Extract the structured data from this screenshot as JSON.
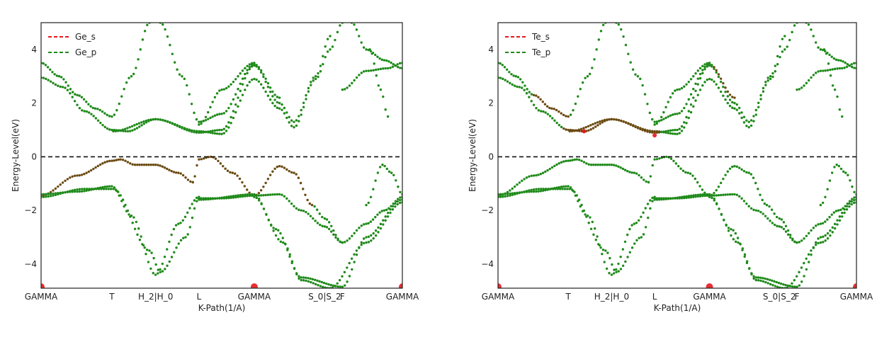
{
  "colors": {
    "s_orbital": "#e8161b",
    "p_orbital": "#1f8a1a",
    "mixed": "#6b4a10",
    "fermi_line": "#111111",
    "axes": "#222222"
  },
  "chart_data": [
    {
      "type": "scatter",
      "xlabel": "K-Path(1/A)",
      "ylabel": "Energy-Level(eV)",
      "xlim": [
        0,
        1
      ],
      "ylim": [
        -4.9,
        5.0
      ],
      "yticks": [
        {
          "value": 4,
          "label": "4"
        },
        {
          "value": 2,
          "label": "2"
        },
        {
          "value": 0,
          "label": "0"
        },
        {
          "value": -2,
          "label": "−2"
        },
        {
          "value": -4,
          "label": "−4"
        }
      ],
      "kpoints": [
        {
          "pos": 0.0,
          "label": "GAMMA"
        },
        {
          "pos": 0.196,
          "label": "T"
        },
        {
          "pos": 0.317,
          "label": "H_2|H_0"
        },
        {
          "pos": 0.437,
          "label": "L"
        },
        {
          "pos": 0.59,
          "label": "GAMMA"
        },
        {
          "pos": 0.785,
          "label": "S_0|S_2"
        },
        {
          "pos": 0.834,
          "label": "F"
        },
        {
          "pos": 1.0,
          "label": "GAMMA"
        }
      ],
      "fermi_level": 0,
      "legend": {
        "placement": "top-left",
        "entries": [
          {
            "label": "Ge_s",
            "color": "#e8161b"
          },
          {
            "label": "Ge_p",
            "color": "#1f8a1a"
          }
        ]
      },
      "bands": [
        [
          [
            0,
            3.5
          ],
          [
            0.05,
            3.0
          ],
          [
            0.1,
            2.3
          ],
          [
            0.15,
            1.8
          ],
          [
            0.196,
            1.5
          ],
          [
            0.25,
            3.0
          ],
          [
            0.3,
            5.0
          ]
        ],
        [
          [
            0,
            2.95
          ],
          [
            0.06,
            2.6
          ],
          [
            0.12,
            1.7
          ],
          [
            0.196,
            1.0
          ],
          [
            0.24,
            0.95
          ],
          [
            0.317,
            1.4
          ],
          [
            0.437,
            0.95
          ],
          [
            0.5,
            0.85
          ],
          [
            0.59,
            2.9
          ],
          [
            0.66,
            1.8
          ],
          [
            0.7,
            1.1
          ],
          [
            0.76,
            2.9
          ],
          [
            0.8,
            4.0
          ],
          [
            0.834,
            5.0
          ]
        ],
        [
          [
            0.2,
            0.95
          ],
          [
            0.317,
            1.4
          ],
          [
            0.437,
            0.9
          ],
          [
            0.5,
            1.0
          ],
          [
            0.59,
            3.4
          ],
          [
            0.66,
            2.0
          ],
          [
            0.7,
            1.3
          ],
          [
            0.76,
            3.0
          ],
          [
            0.8,
            4.5
          ]
        ],
        [
          [
            0.33,
            5.0
          ],
          [
            0.39,
            3.0
          ],
          [
            0.437,
            1.3
          ],
          [
            0.5,
            1.6
          ],
          [
            0.59,
            3.45
          ],
          [
            0.66,
            2.2
          ]
        ],
        [
          [
            0.437,
            1.2
          ],
          [
            0.5,
            2.5
          ],
          [
            0.59,
            3.5
          ]
        ],
        [
          [
            0.0,
            -1.45
          ],
          [
            0.1,
            -0.7
          ],
          [
            0.196,
            -0.15
          ],
          [
            0.22,
            -0.1
          ],
          [
            0.26,
            -0.3
          ],
          [
            0.317,
            -0.3
          ],
          [
            0.38,
            -0.6
          ],
          [
            0.42,
            -0.95
          ]
        ],
        [
          [
            0.42,
            -0.95
          ],
          [
            0.437,
            -0.1
          ],
          [
            0.47,
            0.0
          ],
          [
            0.53,
            -0.6
          ],
          [
            0.59,
            -1.45
          ],
          [
            0.66,
            -0.35
          ],
          [
            0.7,
            -0.6
          ],
          [
            0.75,
            -1.8
          ],
          [
            0.785,
            -2.3
          ],
          [
            0.834,
            -3.2
          ]
        ],
        [
          [
            0.0,
            -1.4
          ],
          [
            0.1,
            -1.3
          ],
          [
            0.196,
            -1.1
          ],
          [
            0.25,
            -2.2
          ],
          [
            0.317,
            -4.4
          ],
          [
            0.38,
            -2.5
          ],
          [
            0.437,
            -1.5
          ]
        ],
        [
          [
            0.0,
            -1.5
          ],
          [
            0.12,
            -1.2
          ],
          [
            0.2,
            -1.2
          ],
          [
            0.3,
            -3.5
          ],
          [
            0.33,
            -4.3
          ],
          [
            0.4,
            -3.0
          ],
          [
            0.437,
            -1.55
          ],
          [
            0.5,
            -1.55
          ],
          [
            0.59,
            -1.45
          ],
          [
            0.66,
            -1.4
          ],
          [
            0.72,
            -2.0
          ],
          [
            0.785,
            -2.6
          ],
          [
            0.834,
            -3.2
          ],
          [
            0.9,
            -2.5
          ],
          [
            0.95,
            -2.0
          ],
          [
            1.0,
            -1.5
          ]
        ],
        [
          [
            0.437,
            -1.6
          ],
          [
            0.59,
            -1.4
          ],
          [
            0.65,
            -2.7
          ],
          [
            0.72,
            -4.5
          ],
          [
            0.834,
            -4.85
          ],
          [
            0.9,
            -3.0
          ],
          [
            1.0,
            -1.6
          ]
        ],
        [
          [
            0.59,
            -1.5
          ],
          [
            0.67,
            -3.2
          ],
          [
            0.72,
            -4.6
          ],
          [
            0.8,
            -4.9
          ],
          [
            0.9,
            -3.2
          ],
          [
            1.0,
            -1.7
          ]
        ],
        [
          [
            0.834,
            2.5
          ],
          [
            0.9,
            3.2
          ],
          [
            0.96,
            3.3
          ],
          [
            1.0,
            3.5
          ]
        ],
        [
          [
            0.86,
            5.0
          ],
          [
            0.9,
            4.0
          ],
          [
            0.95,
            3.6
          ],
          [
            1.0,
            3.3
          ]
        ],
        [
          [
            0.9,
            -1.8
          ],
          [
            0.945,
            -0.3
          ],
          [
            0.97,
            -0.6
          ],
          [
            1.0,
            -1.4
          ]
        ],
        [
          [
            0.91,
            4.0
          ],
          [
            0.94,
            2.5
          ],
          [
            0.96,
            1.5
          ]
        ]
      ],
      "s_weight": [
        {
          "x": 0.0,
          "y": -4.85,
          "r": 5
        },
        {
          "x": 0.59,
          "y": -4.85,
          "r": 5
        },
        {
          "x": 1.0,
          "y": -4.85,
          "r": 5
        }
      ],
      "mixed_segments": [
        [
          5,
          0,
          1
        ],
        [
          6,
          0,
          0.75
        ]
      ]
    },
    {
      "type": "scatter",
      "xlabel": "K-Path(1/A)",
      "ylabel": "Energy-Level(eV)",
      "xlim": [
        0,
        1
      ],
      "ylim": [
        -4.9,
        5.0
      ],
      "yticks": [
        {
          "value": 4,
          "label": "4"
        },
        {
          "value": 2,
          "label": "2"
        },
        {
          "value": 0,
          "label": "0"
        },
        {
          "value": -2,
          "label": "−2"
        },
        {
          "value": -4,
          "label": "−4"
        }
      ],
      "kpoints": [
        {
          "pos": 0.0,
          "label": "GAMMA"
        },
        {
          "pos": 0.196,
          "label": "T"
        },
        {
          "pos": 0.317,
          "label": "H_2|H_0"
        },
        {
          "pos": 0.437,
          "label": "L"
        },
        {
          "pos": 0.59,
          "label": "GAMMA"
        },
        {
          "pos": 0.785,
          "label": "S_0|S_2"
        },
        {
          "pos": 0.834,
          "label": "F"
        },
        {
          "pos": 1.0,
          "label": "GAMMA"
        }
      ],
      "fermi_level": 0,
      "legend": {
        "placement": "top-left",
        "entries": [
          {
            "label": "Te_s",
            "color": "#e8161b"
          },
          {
            "label": "Te_p",
            "color": "#1f8a1a"
          }
        ]
      },
      "bands": [
        [
          [
            0,
            3.5
          ],
          [
            0.05,
            3.0
          ],
          [
            0.1,
            2.3
          ],
          [
            0.15,
            1.8
          ],
          [
            0.196,
            1.5
          ],
          [
            0.25,
            3.0
          ],
          [
            0.3,
            5.0
          ]
        ],
        [
          [
            0,
            2.95
          ],
          [
            0.06,
            2.6
          ],
          [
            0.12,
            1.7
          ],
          [
            0.196,
            1.0
          ],
          [
            0.24,
            0.95
          ],
          [
            0.317,
            1.4
          ],
          [
            0.437,
            0.95
          ],
          [
            0.5,
            0.85
          ],
          [
            0.59,
            2.9
          ],
          [
            0.66,
            1.8
          ],
          [
            0.7,
            1.1
          ],
          [
            0.76,
            2.9
          ],
          [
            0.8,
            4.0
          ],
          [
            0.834,
            5.0
          ]
        ],
        [
          [
            0.2,
            0.95
          ],
          [
            0.317,
            1.4
          ],
          [
            0.437,
            0.9
          ],
          [
            0.5,
            1.0
          ],
          [
            0.59,
            3.4
          ],
          [
            0.66,
            2.0
          ],
          [
            0.7,
            1.3
          ],
          [
            0.76,
            3.0
          ],
          [
            0.8,
            4.5
          ]
        ],
        [
          [
            0.33,
            5.0
          ],
          [
            0.39,
            3.0
          ],
          [
            0.437,
            1.3
          ],
          [
            0.5,
            1.6
          ],
          [
            0.59,
            3.45
          ],
          [
            0.66,
            2.2
          ]
        ],
        [
          [
            0.437,
            1.2
          ],
          [
            0.5,
            2.5
          ],
          [
            0.59,
            3.5
          ]
        ],
        [
          [
            0.0,
            -1.45
          ],
          [
            0.1,
            -0.7
          ],
          [
            0.196,
            -0.15
          ],
          [
            0.22,
            -0.1
          ],
          [
            0.26,
            -0.3
          ],
          [
            0.317,
            -0.3
          ],
          [
            0.38,
            -0.6
          ],
          [
            0.42,
            -0.95
          ]
        ],
        [
          [
            0.42,
            -0.95
          ],
          [
            0.437,
            -0.1
          ],
          [
            0.47,
            0.0
          ],
          [
            0.53,
            -0.6
          ],
          [
            0.59,
            -1.45
          ],
          [
            0.66,
            -0.35
          ],
          [
            0.7,
            -0.6
          ],
          [
            0.75,
            -1.8
          ],
          [
            0.785,
            -2.3
          ],
          [
            0.834,
            -3.2
          ]
        ],
        [
          [
            0.0,
            -1.4
          ],
          [
            0.1,
            -1.3
          ],
          [
            0.196,
            -1.1
          ],
          [
            0.25,
            -2.2
          ],
          [
            0.317,
            -4.4
          ],
          [
            0.38,
            -2.5
          ],
          [
            0.437,
            -1.5
          ]
        ],
        [
          [
            0.0,
            -1.5
          ],
          [
            0.12,
            -1.2
          ],
          [
            0.2,
            -1.2
          ],
          [
            0.3,
            -3.5
          ],
          [
            0.33,
            -4.3
          ],
          [
            0.4,
            -3.0
          ],
          [
            0.437,
            -1.55
          ],
          [
            0.5,
            -1.55
          ],
          [
            0.59,
            -1.45
          ],
          [
            0.66,
            -1.4
          ],
          [
            0.72,
            -2.0
          ],
          [
            0.785,
            -2.6
          ],
          [
            0.834,
            -3.2
          ],
          [
            0.9,
            -2.5
          ],
          [
            0.95,
            -2.0
          ],
          [
            1.0,
            -1.5
          ]
        ],
        [
          [
            0.437,
            -1.6
          ],
          [
            0.59,
            -1.4
          ],
          [
            0.65,
            -2.7
          ],
          [
            0.72,
            -4.5
          ],
          [
            0.834,
            -4.85
          ],
          [
            0.9,
            -3.0
          ],
          [
            1.0,
            -1.6
          ]
        ],
        [
          [
            0.59,
            -1.5
          ],
          [
            0.67,
            -3.2
          ],
          [
            0.72,
            -4.6
          ],
          [
            0.8,
            -4.9
          ],
          [
            0.9,
            -3.2
          ],
          [
            1.0,
            -1.7
          ]
        ],
        [
          [
            0.834,
            2.5
          ],
          [
            0.9,
            3.2
          ],
          [
            0.96,
            3.3
          ],
          [
            1.0,
            3.5
          ]
        ],
        [
          [
            0.86,
            5.0
          ],
          [
            0.9,
            4.0
          ],
          [
            0.95,
            3.6
          ],
          [
            1.0,
            3.3
          ]
        ],
        [
          [
            0.9,
            -1.8
          ],
          [
            0.945,
            -0.3
          ],
          [
            0.97,
            -0.6
          ],
          [
            1.0,
            -1.4
          ]
        ],
        [
          [
            0.91,
            4.0
          ],
          [
            0.94,
            2.5
          ],
          [
            0.96,
            1.5
          ]
        ]
      ],
      "s_weight": [
        {
          "x": 0.0,
          "y": -4.85,
          "r": 5
        },
        {
          "x": 0.59,
          "y": -4.85,
          "r": 5
        },
        {
          "x": 1.0,
          "y": -4.85,
          "r": 5
        },
        {
          "x": 0.437,
          "y": 0.8,
          "r": 3
        },
        {
          "x": 0.24,
          "y": 0.95,
          "r": 3
        }
      ],
      "mixed_segments": [
        [
          0,
          0.1,
          0.196
        ],
        [
          1,
          0.18,
          0.45
        ],
        [
          2,
          0.2,
          0.45
        ],
        [
          3,
          0.6,
          0.66
        ]
      ]
    }
  ]
}
